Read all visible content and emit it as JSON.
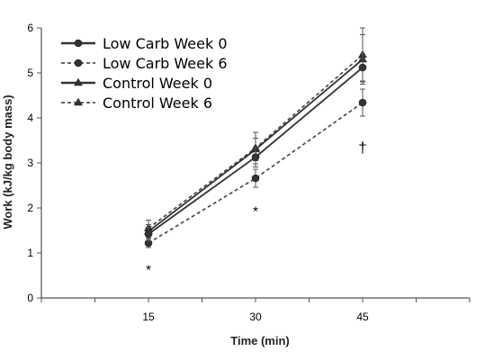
{
  "chart_data": {
    "type": "line",
    "xlabel": "Time (min)",
    "ylabel": "Work (kJ/kg body mass)",
    "x": [
      15,
      30,
      45
    ],
    "xlim": [
      0,
      60
    ],
    "ylim": [
      0,
      6
    ],
    "x_ticks": [
      "15",
      "30",
      "45"
    ],
    "y_ticks": [
      "0",
      "1",
      "2",
      "3",
      "4",
      "5",
      "6"
    ],
    "grid": false,
    "legend_position": "top-left",
    "series": [
      {
        "name": "Low Carb Week 0",
        "marker": "circle",
        "line": "solid",
        "values": [
          1.42,
          3.13,
          5.12
        ],
        "errors": [
          0.15,
          0.22,
          0.3
        ]
      },
      {
        "name": "Low Carb Week 6",
        "marker": "circle",
        "line": "dashed",
        "values": [
          1.22,
          2.66,
          4.34
        ],
        "errors": [
          0.1,
          0.2,
          0.3
        ]
      },
      {
        "name": "Control Week 0",
        "marker": "triangle",
        "line": "solid",
        "values": [
          1.48,
          3.3,
          5.3
        ],
        "errors": [
          0.15,
          0.25,
          0.55
        ]
      },
      {
        "name": "Control Week 6",
        "marker": "triangle",
        "line": "dashed",
        "values": [
          1.55,
          3.33,
          5.4
        ],
        "errors": [
          0.18,
          0.35,
          0.6
        ]
      }
    ],
    "annotations": [
      {
        "text": "*",
        "x": 15,
        "y": 0.65
      },
      {
        "text": "*",
        "x": 30,
        "y": 1.95
      },
      {
        "text": "†",
        "x": 45,
        "y": 3.35
      }
    ]
  }
}
